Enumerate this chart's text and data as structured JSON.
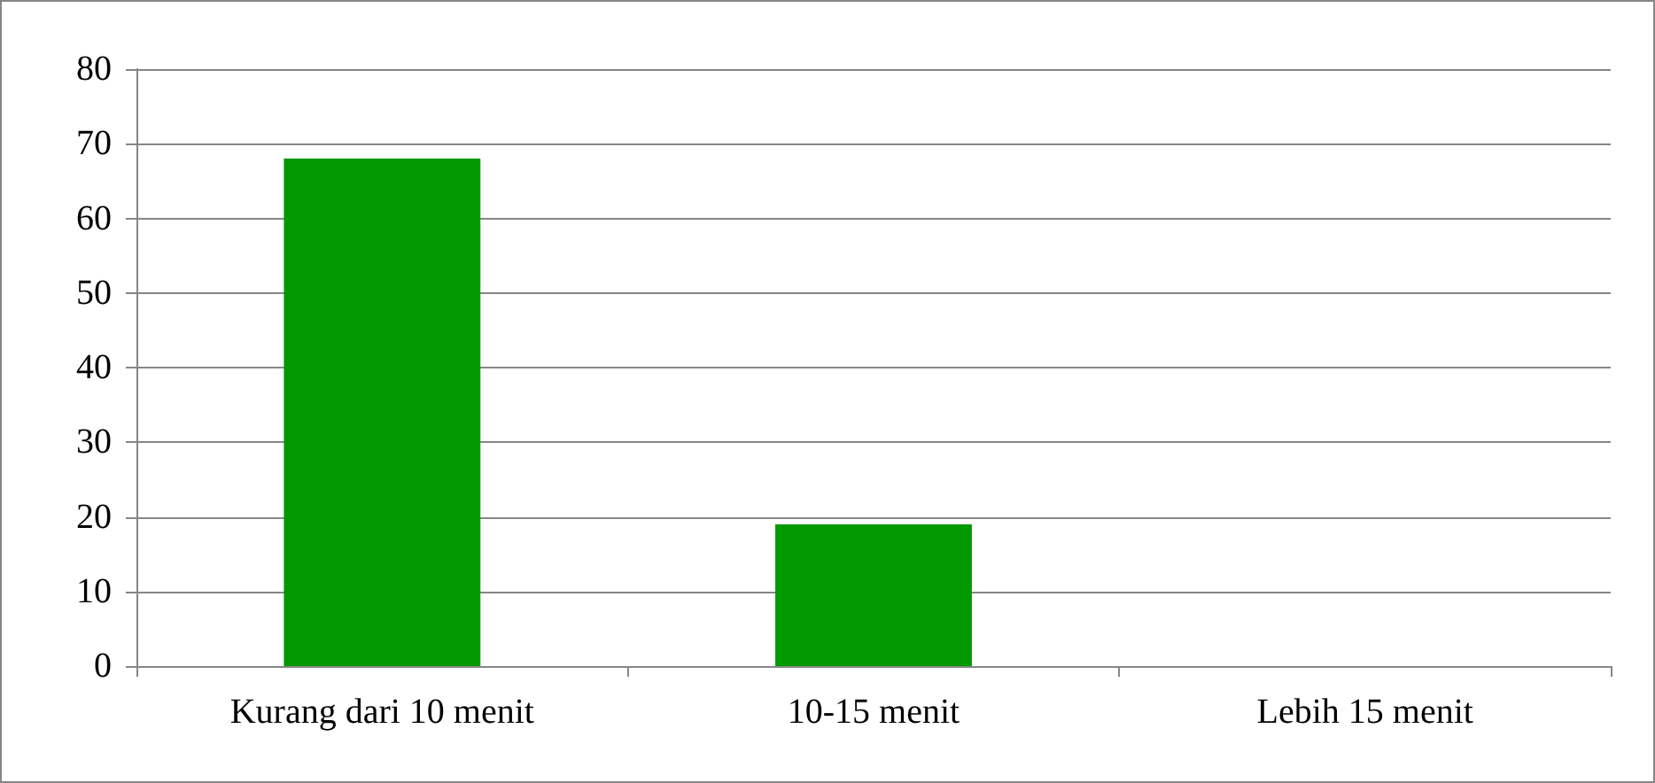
{
  "chart_data": {
    "type": "bar",
    "categories": [
      "Kurang dari 10 menit",
      "10-15 menit",
      "Lebih 15 menit"
    ],
    "values": [
      68,
      19,
      0
    ],
    "color": "#009900",
    "ylim": [
      0,
      80
    ],
    "yticks": [
      0,
      10,
      20,
      30,
      40,
      50,
      60,
      70,
      80
    ],
    "grid": "y"
  }
}
